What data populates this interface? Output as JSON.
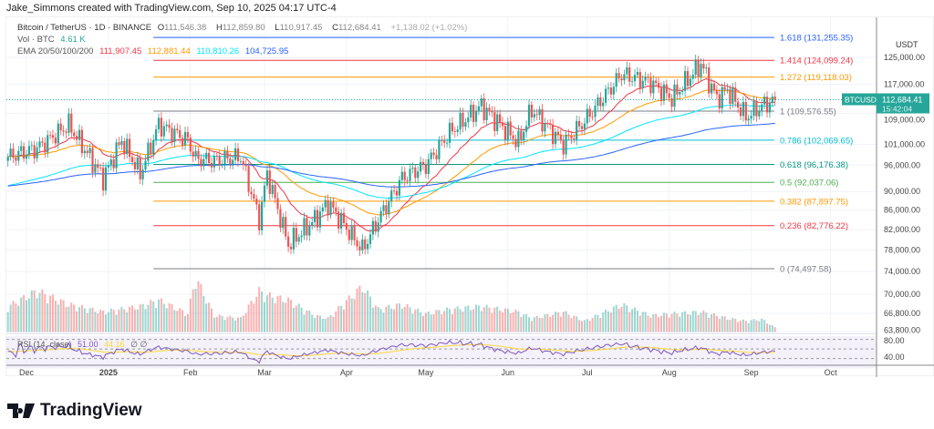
{
  "credit": "Jake_Simmons created with TradingView.com, Sep 10, 2025 04:17 UTC-4",
  "legend": {
    "symbol": "Bitcoin / TetherUS · 1D · BINANCE",
    "o_label": "O",
    "o": "111,546.38",
    "h_label": "H",
    "h": "112,859.80",
    "l_label": "L",
    "l": "110,917.45",
    "c_label": "C",
    "c": "112,684.41",
    "change": "+1,138.02 (+1.02%)",
    "vol_label": "Vol · BTC",
    "vol": "4.61 K",
    "ema_label": "EMA 20/50/100/200",
    "ema20": "111,907.45",
    "ema50": "112,881.44",
    "ema100": "110,810.26",
    "ema200": "104,725.95",
    "rsi_label": "RSI 14 close",
    "rsi_text": "RSI (14, close)",
    "rsi": "51.00",
    "rsi_ma": "44.16",
    "rsi_extra": "∅ ∅"
  },
  "price_axis": {
    "currency": "USDT",
    "ticks": [
      "125,000.00",
      "117,000.00",
      "109,000.00",
      "101,000.00",
      "96,000.00",
      "90,000.00",
      "86,000.00",
      "82,000.00",
      "78,000.00",
      "74,000.00",
      "70,000.00",
      "66,800.00",
      "63,800.00"
    ]
  },
  "rsi_axis": {
    "ticks": [
      "80.00",
      "40.00"
    ]
  },
  "time_axis": {
    "ticks": [
      "Dec",
      "2025",
      "Feb",
      "Mar",
      "Apr",
      "May",
      "Jun",
      "Jul",
      "Aug",
      "Sep",
      "Oct"
    ]
  },
  "current_price": {
    "symbol": "BTCUSDT",
    "price": "112,684.41",
    "countdown": "15:42:04"
  },
  "colors": {
    "up": "#26a69a",
    "down": "#ef5350",
    "ema20": "#f23645",
    "ema50": "#ff9800",
    "ema100": "#00e5ff",
    "ema200": "#2962ff",
    "rsi": "#7e57c2",
    "rsi_ma": "#fdd835"
  },
  "fib_levels": [
    {
      "label": "1.618 (131,255.35)",
      "price": 131255.35,
      "color": "#2962ff"
    },
    {
      "label": "1.414 (124,099.24)",
      "price": 124099.24,
      "color": "#f23645"
    },
    {
      "label": "1.272 (119,118.03)",
      "price": 119118.03,
      "color": "#ff9800"
    },
    {
      "label": "1 (109,576.55)",
      "price": 109576.55,
      "color": "#787b86"
    },
    {
      "label": "0.786 (102,069.65)",
      "price": 102069.65,
      "color": "#00bcd4"
    },
    {
      "label": "0.618 (96,176.38)",
      "price": 96176.38,
      "color": "#089981"
    },
    {
      "label": "0.5 (92,037.06)",
      "price": 92037.06,
      "color": "#4caf50"
    },
    {
      "label": "0.382 (87,897.75)",
      "price": 87897.75,
      "color": "#ff9800"
    },
    {
      "label": "0.236 (82,776.22)",
      "price": 82776.22,
      "color": "#f23645"
    },
    {
      "label": "0 (74,497.58)",
      "price": 74497.58,
      "color": "#787b86"
    }
  ],
  "chart_data": {
    "type": "candlestick",
    "title": "Bitcoin / TetherUS · 1D · BINANCE",
    "scale": "log",
    "ylim": [
      63800,
      131255
    ],
    "grid": true,
    "points": [
      {
        "date": "2024-11-24",
        "close": 98000,
        "vol_k": 28
      },
      {
        "date": "2024-12-05",
        "close": 100000,
        "vol_k": 45
      },
      {
        "date": "2024-12-17",
        "close": 106000,
        "vol_k": 30
      },
      {
        "date": "2024-12-30",
        "close": 93000,
        "vol_k": 22
      },
      {
        "date": "2025-01-06",
        "close": 102000,
        "vol_k": 25
      },
      {
        "date": "2025-01-13",
        "close": 94000,
        "vol_k": 28
      },
      {
        "date": "2025-01-20",
        "close": 106000,
        "vol_k": 35
      },
      {
        "date": "2025-01-31",
        "close": 102000,
        "vol_k": 20
      },
      {
        "date": "2025-02-03",
        "close": 97500,
        "vol_k": 60
      },
      {
        "date": "2025-02-10",
        "close": 97000,
        "vol_k": 18
      },
      {
        "date": "2025-02-20",
        "close": 98000,
        "vol_k": 15
      },
      {
        "date": "2025-02-27",
        "close": 84000,
        "vol_k": 45
      },
      {
        "date": "2025-03-02",
        "close": 94000,
        "vol_k": 40
      },
      {
        "date": "2025-03-10",
        "close": 79000,
        "vol_k": 35
      },
      {
        "date": "2025-03-20",
        "close": 84000,
        "vol_k": 18
      },
      {
        "date": "2025-03-25",
        "close": 87500,
        "vol_k": 15
      },
      {
        "date": "2025-04-07",
        "close": 78000,
        "vol_k": 50
      },
      {
        "date": "2025-04-13",
        "close": 84000,
        "vol_k": 25
      },
      {
        "date": "2025-04-22",
        "close": 93000,
        "vol_k": 30
      },
      {
        "date": "2025-05-01",
        "close": 96000,
        "vol_k": 20
      },
      {
        "date": "2025-05-10",
        "close": 104000,
        "vol_k": 25
      },
      {
        "date": "2025-05-22",
        "close": 111000,
        "vol_k": 28
      },
      {
        "date": "2025-06-05",
        "close": 101500,
        "vol_k": 22
      },
      {
        "date": "2025-06-10",
        "close": 110000,
        "vol_k": 15
      },
      {
        "date": "2025-06-22",
        "close": 101000,
        "vol_k": 22
      },
      {
        "date": "2025-06-30",
        "close": 107000,
        "vol_k": 12
      },
      {
        "date": "2025-07-10",
        "close": 116000,
        "vol_k": 25
      },
      {
        "date": "2025-07-14",
        "close": 120000,
        "vol_k": 30
      },
      {
        "date": "2025-07-25",
        "close": 117500,
        "vol_k": 18
      },
      {
        "date": "2025-08-02",
        "close": 113000,
        "vol_k": 20
      },
      {
        "date": "2025-08-13",
        "close": 123000,
        "vol_k": 22
      },
      {
        "date": "2025-08-19",
        "close": 113000,
        "vol_k": 18
      },
      {
        "date": "2025-08-23",
        "close": 115500,
        "vol_k": 15
      },
      {
        "date": "2025-08-30",
        "close": 108000,
        "vol_k": 12
      },
      {
        "date": "2025-09-05",
        "close": 111000,
        "vol_k": 14
      },
      {
        "date": "2025-09-10",
        "close": 112684.41,
        "vol_k": 5
      }
    ]
  }
}
